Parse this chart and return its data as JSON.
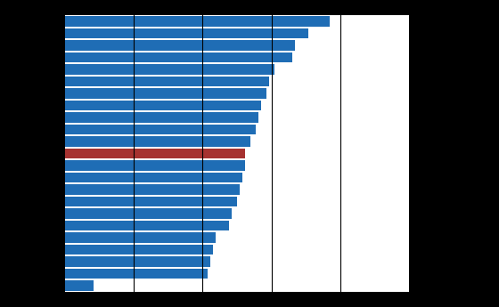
{
  "bar_color_default": "#1F6DB5",
  "bar_color_highlight": "#A63230",
  "values": [
    100,
    92,
    87,
    86,
    79,
    77,
    76,
    74,
    73,
    72,
    70,
    68,
    68,
    67,
    66,
    65,
    63,
    62,
    57,
    56,
    55,
    54,
    11
  ],
  "highlight_index": 11,
  "xlim": [
    0,
    130
  ],
  "vline_positions": [
    26,
    52,
    78,
    104
  ],
  "background_color": "#000000",
  "axes_background": "#ffffff",
  "bar_height": 0.88
}
